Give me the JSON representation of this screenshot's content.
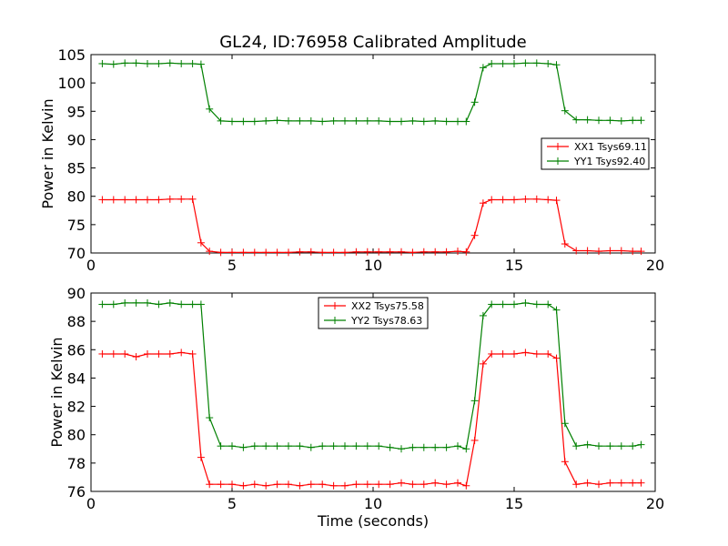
{
  "figure": {
    "title": "GL24, ID:76958 Calibrated Amplitude"
  },
  "chart_data": [
    {
      "type": "line",
      "title": "GL24, ID:76958 Calibrated Amplitude",
      "xlabel": "",
      "ylabel": "Power in Kelvin",
      "xlim": [
        0,
        20
      ],
      "ylim": [
        70,
        105
      ],
      "xticks": [
        0,
        5,
        10,
        15,
        20
      ],
      "yticks": [
        70,
        75,
        80,
        85,
        90,
        95,
        100,
        105
      ],
      "grid": false,
      "legend_placement": "center-right",
      "x": [
        0.4,
        0.8,
        1.2,
        1.6,
        2.0,
        2.4,
        2.8,
        3.2,
        3.6,
        3.9,
        4.2,
        4.6,
        5.0,
        5.4,
        5.8,
        6.2,
        6.6,
        7.0,
        7.4,
        7.8,
        8.2,
        8.6,
        9.0,
        9.4,
        9.8,
        10.2,
        10.6,
        11.0,
        11.4,
        11.8,
        12.2,
        12.6,
        13.0,
        13.3,
        13.6,
        13.9,
        14.2,
        14.6,
        15.0,
        15.4,
        15.8,
        16.2,
        16.5,
        16.8,
        17.2,
        17.6,
        18.0,
        18.4,
        18.8,
        19.2,
        19.5
      ],
      "series": [
        {
          "name": "XX1 Tsys69.11",
          "color": "#ff0000",
          "values": [
            79.4,
            79.4,
            79.4,
            79.4,
            79.4,
            79.4,
            79.5,
            79.5,
            79.5,
            71.8,
            70.3,
            70.1,
            70.1,
            70.1,
            70.1,
            70.1,
            70.1,
            70.1,
            70.2,
            70.2,
            70.1,
            70.1,
            70.1,
            70.2,
            70.2,
            70.2,
            70.2,
            70.2,
            70.1,
            70.2,
            70.2,
            70.2,
            70.3,
            70.2,
            73.1,
            78.8,
            79.4,
            79.4,
            79.4,
            79.5,
            79.5,
            79.4,
            79.3,
            71.6,
            70.4,
            70.4,
            70.3,
            70.4,
            70.4,
            70.3,
            70.3
          ]
        },
        {
          "name": "YY1 Tsys92.40",
          "color": "#008000",
          "values": [
            103.4,
            103.3,
            103.5,
            103.5,
            103.4,
            103.4,
            103.5,
            103.4,
            103.4,
            103.3,
            95.4,
            93.3,
            93.2,
            93.2,
            93.2,
            93.3,
            93.4,
            93.3,
            93.3,
            93.3,
            93.2,
            93.3,
            93.3,
            93.3,
            93.3,
            93.3,
            93.2,
            93.2,
            93.3,
            93.2,
            93.3,
            93.2,
            93.2,
            93.2,
            96.6,
            102.7,
            103.4,
            103.4,
            103.4,
            103.5,
            103.5,
            103.4,
            103.2,
            95.1,
            93.5,
            93.5,
            93.4,
            93.4,
            93.3,
            93.4,
            93.4
          ]
        }
      ]
    },
    {
      "type": "line",
      "title": "",
      "xlabel": "Time (seconds)",
      "ylabel": "Power in Kelvin",
      "xlim": [
        0,
        20
      ],
      "ylim": [
        76,
        90
      ],
      "xticks": [
        0,
        5,
        10,
        15,
        20
      ],
      "yticks": [
        76,
        78,
        80,
        82,
        84,
        86,
        88,
        90
      ],
      "grid": false,
      "legend_placement": "top-center",
      "x": [
        0.4,
        0.8,
        1.2,
        1.6,
        2.0,
        2.4,
        2.8,
        3.2,
        3.6,
        3.9,
        4.2,
        4.6,
        5.0,
        5.4,
        5.8,
        6.2,
        6.6,
        7.0,
        7.4,
        7.8,
        8.2,
        8.6,
        9.0,
        9.4,
        9.8,
        10.2,
        10.6,
        11.0,
        11.4,
        11.8,
        12.2,
        12.6,
        13.0,
        13.3,
        13.6,
        13.9,
        14.2,
        14.6,
        15.0,
        15.4,
        15.8,
        16.2,
        16.5,
        16.8,
        17.2,
        17.6,
        18.0,
        18.4,
        18.8,
        19.2,
        19.5
      ],
      "series": [
        {
          "name": "XX2 Tsys75.58",
          "color": "#ff0000",
          "values": [
            85.7,
            85.7,
            85.7,
            85.5,
            85.7,
            85.7,
            85.7,
            85.8,
            85.7,
            78.4,
            76.5,
            76.5,
            76.5,
            76.4,
            76.5,
            76.4,
            76.5,
            76.5,
            76.4,
            76.5,
            76.5,
            76.4,
            76.4,
            76.5,
            76.5,
            76.5,
            76.5,
            76.6,
            76.5,
            76.5,
            76.6,
            76.5,
            76.6,
            76.4,
            79.6,
            85.0,
            85.7,
            85.7,
            85.7,
            85.8,
            85.7,
            85.7,
            85.4,
            78.1,
            76.5,
            76.6,
            76.5,
            76.6,
            76.6,
            76.6,
            76.6
          ]
        },
        {
          "name": "YY2 Tsys78.63",
          "color": "#008000",
          "values": [
            89.2,
            89.2,
            89.3,
            89.3,
            89.3,
            89.2,
            89.3,
            89.2,
            89.2,
            89.2,
            81.2,
            79.2,
            79.2,
            79.1,
            79.2,
            79.2,
            79.2,
            79.2,
            79.2,
            79.1,
            79.2,
            79.2,
            79.2,
            79.2,
            79.2,
            79.2,
            79.1,
            79.0,
            79.1,
            79.1,
            79.1,
            79.1,
            79.2,
            79.0,
            82.4,
            88.4,
            89.2,
            89.2,
            89.2,
            89.3,
            89.2,
            89.2,
            88.8,
            80.8,
            79.2,
            79.3,
            79.2,
            79.2,
            79.2,
            79.2,
            79.3
          ]
        }
      ]
    }
  ]
}
